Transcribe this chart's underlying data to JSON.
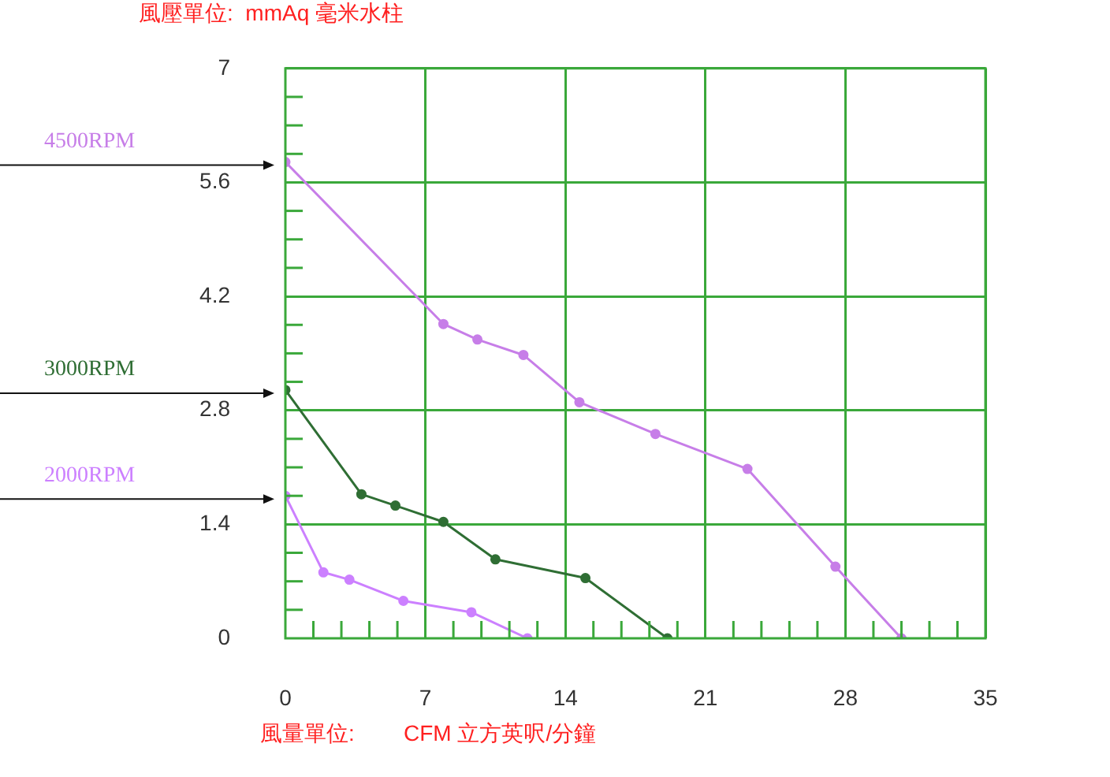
{
  "chart_data": {
    "type": "line",
    "ylabel": "風壓單位:  mmAq 毫米水柱",
    "xlabel": "風量單位:        CFM 立方英呎/分鐘",
    "xlim": [
      0,
      35
    ],
    "ylim": [
      0,
      7
    ],
    "xticks": [
      0,
      {
        "value": 1.4,
        "label": null
      },
      {
        "value": 2.8,
        "label": null
      },
      {
        "value": 4.2,
        "label": null
      },
      {
        "value": 5.6,
        "label": null
      },
      7,
      {
        "value": 8.4,
        "label": null
      },
      {
        "value": 9.8,
        "label": null
      },
      {
        "value": 11.2,
        "label": null
      },
      {
        "value": 12.6,
        "label": null
      },
      14,
      {
        "value": 15.4,
        "label": null
      },
      {
        "value": 16.8,
        "label": null
      },
      {
        "value": 18.2,
        "label": null
      },
      {
        "value": 19.6,
        "label": null
      },
      21,
      {
        "value": 22.4,
        "label": null
      },
      {
        "value": 23.8,
        "label": null
      },
      {
        "value": 25.2,
        "label": null
      },
      {
        "value": 26.6,
        "label": null
      },
      28,
      {
        "value": 29.4,
        "label": null
      },
      {
        "value": 30.8,
        "label": null
      },
      {
        "value": 32.2,
        "label": null
      },
      {
        "value": 33.6,
        "label": null
      },
      35
    ],
    "yticks": [
      0,
      {
        "value": 0.35,
        "label": null
      },
      {
        "value": 0.7,
        "label": null
      },
      {
        "value": 1.05,
        "label": null
      },
      1.4,
      {
        "value": 1.75,
        "label": null
      },
      {
        "value": 2.1,
        "label": null
      },
      {
        "value": 2.45,
        "label": null
      },
      2.8,
      {
        "value": 3.15,
        "label": null
      },
      {
        "value": 3.5,
        "label": null
      },
      {
        "value": 3.85,
        "label": null
      },
      4.2,
      {
        "value": 4.55,
        "label": null
      },
      {
        "value": 4.9,
        "label": null
      },
      {
        "value": 5.25,
        "label": null
      },
      5.6,
      {
        "value": 5.95,
        "label": null
      },
      {
        "value": 6.3,
        "label": null
      },
      {
        "value": 6.65,
        "label": null
      },
      7
    ],
    "grid": true,
    "legend": false,
    "marker": "circle",
    "line_style": "solid",
    "series": [
      {
        "name": "4500RPM",
        "color": "#c77ee8",
        "x": [
          0,
          7.9,
          9.6,
          11.9,
          14.7,
          18.5,
          23.1,
          27.5,
          30.8
        ],
        "values": [
          5.85,
          3.86,
          3.67,
          3.48,
          2.9,
          2.51,
          2.08,
          0.88,
          0
        ]
      },
      {
        "name": "3000RPM",
        "color": "#2f6e34",
        "x": [
          0,
          3.8,
          5.5,
          7.9,
          10.5,
          15,
          19.1
        ],
        "values": [
          3.05,
          1.77,
          1.63,
          1.43,
          0.97,
          0.74,
          0
        ]
      },
      {
        "name": "2000RPM",
        "color": "#cc80ff",
        "x": [
          0,
          1.9,
          3.2,
          5.9,
          9.3,
          12.1
        ],
        "values": [
          1.75,
          0.81,
          0.72,
          0.46,
          0.32,
          0
        ]
      }
    ]
  }
}
